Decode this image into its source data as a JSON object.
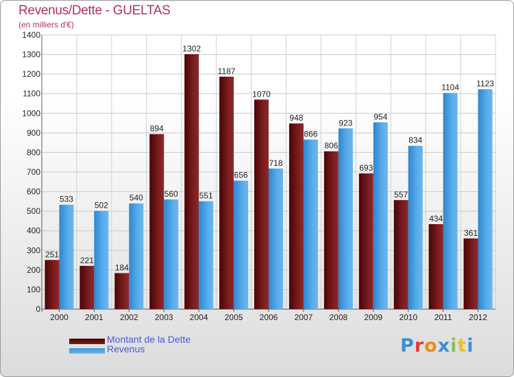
{
  "title": "Revenus/Dette - GUELTAS",
  "subtitle": "(en milliers d'€)",
  "logo": {
    "letters": [
      {
        "ch": "P",
        "color": "#3a8fd6"
      },
      {
        "ch": "r",
        "color": "#e03b3b"
      },
      {
        "ch": "o",
        "color": "#f08a1c"
      },
      {
        "ch": "x",
        "color": "#3a8fd6"
      },
      {
        "ch": "i",
        "color": "#8bc34a"
      },
      {
        "ch": "t",
        "color": "#f0c020"
      },
      {
        "ch": "i",
        "color": "#3a8fd6"
      }
    ]
  },
  "legend": [
    {
      "label": "Montant de la Dette",
      "color": "#6b0f10"
    },
    {
      "label": "Revenus",
      "color": "#4aa3e6"
    }
  ],
  "chart_data": {
    "type": "bar",
    "title": "Revenus/Dette - GUELTAS",
    "subtitle": "(en milliers d'€)",
    "categories": [
      "2000",
      "2001",
      "2002",
      "2003",
      "2004",
      "2005",
      "2006",
      "2007",
      "2008",
      "2009",
      "2010",
      "2011",
      "2012"
    ],
    "series": [
      {
        "name": "Montant de la Dette",
        "color": "#6b0f10",
        "values": [
          251,
          221,
          184,
          894,
          1302,
          1187,
          1070,
          948,
          806,
          693,
          557,
          434,
          361
        ]
      },
      {
        "name": "Revenus",
        "color": "#4aa3e6",
        "values": [
          533,
          502,
          540,
          560,
          551,
          656,
          718,
          866,
          923,
          954,
          834,
          1104,
          1123
        ]
      }
    ],
    "yticks": [
      0,
      100,
      200,
      300,
      400,
      500,
      600,
      700,
      800,
      900,
      1000,
      1100,
      1200,
      1300,
      1400
    ],
    "ylim": [
      0,
      1400
    ],
    "grid": true,
    "legend_position": "bottom-left"
  }
}
